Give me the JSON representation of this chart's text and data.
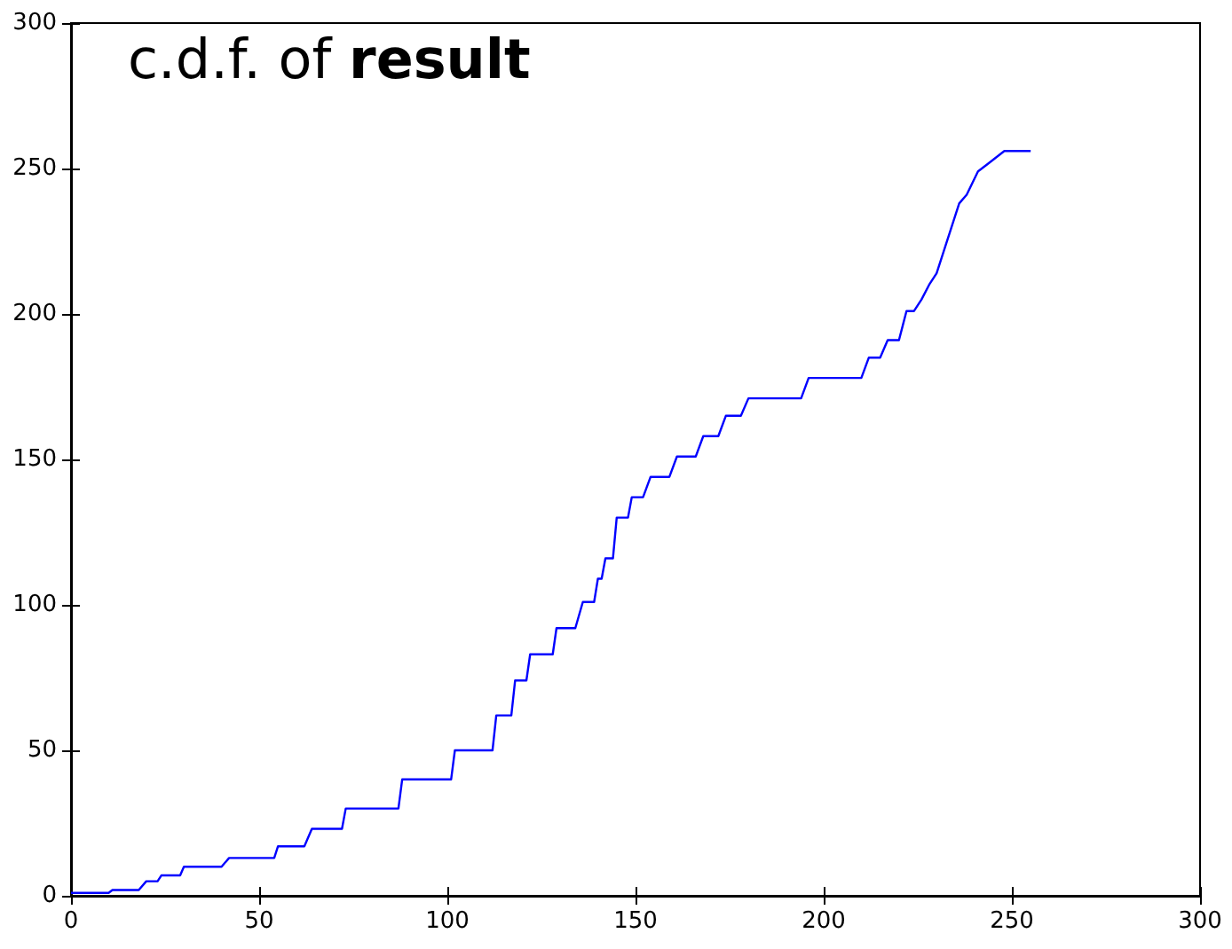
{
  "chart_data": {
    "type": "line",
    "title": "c.d.f. of result",
    "xlim": [
      0,
      300
    ],
    "ylim": [
      0,
      300
    ],
    "xticks": [
      0,
      50,
      100,
      150,
      200,
      250,
      300
    ],
    "yticks": [
      0,
      50,
      100,
      150,
      200,
      250,
      300
    ],
    "grid": false,
    "marker": "none",
    "line_style": "solid",
    "series": [
      {
        "color": "#0000ff",
        "x": [
          0,
          10,
          11,
          18,
          20,
          23,
          24,
          29,
          30,
          40,
          42,
          54,
          55,
          62,
          64,
          72,
          73,
          87,
          88,
          101,
          102,
          112,
          113,
          117,
          118,
          121,
          122,
          128,
          129,
          134,
          136,
          139,
          140,
          141,
          142,
          144,
          145,
          148,
          149,
          152,
          154,
          159,
          161,
          166,
          168,
          172,
          174,
          178,
          180,
          194,
          196,
          210,
          212,
          215,
          217,
          220,
          222,
          224,
          226,
          228,
          230,
          232,
          234,
          236,
          238,
          241,
          244,
          248,
          255
        ],
        "values": [
          1,
          1,
          2,
          2,
          5,
          5,
          7,
          7,
          10,
          10,
          13,
          13,
          17,
          17,
          23,
          23,
          30,
          30,
          40,
          40,
          50,
          50,
          62,
          62,
          74,
          74,
          83,
          83,
          92,
          92,
          101,
          101,
          109,
          109,
          116,
          116,
          130,
          130,
          137,
          137,
          144,
          144,
          151,
          151,
          158,
          158,
          165,
          165,
          171,
          171,
          178,
          178,
          185,
          185,
          191,
          191,
          201,
          201,
          205,
          210,
          214,
          222,
          230,
          238,
          241,
          249,
          252,
          256,
          256
        ]
      }
    ]
  }
}
